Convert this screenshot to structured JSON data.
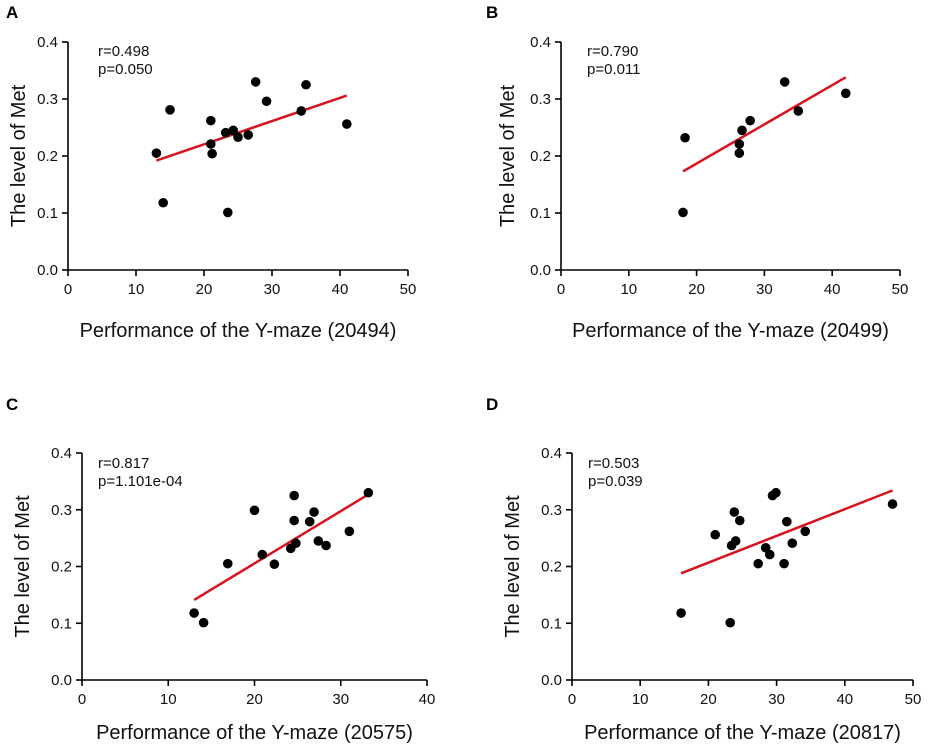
{
  "chart_data": [
    {
      "type": "scatter",
      "panel": "A",
      "stats": {
        "r": "r=0.498",
        "p": "p=0.050"
      },
      "xlabel": "Performance of the Y-maze (20494)",
      "ylabel": "The level of Met",
      "xlim": [
        0,
        50
      ],
      "ylim": [
        0,
        0.4
      ],
      "xticks": [
        "0",
        "10",
        "20",
        "30",
        "40",
        "50"
      ],
      "yticks": [
        "0.0",
        "0.1",
        "0.2",
        "0.3",
        "0.4"
      ],
      "fit": {
        "x": [
          13,
          41
        ],
        "y": [
          0.192,
          0.306
        ]
      },
      "points": [
        {
          "x": 13,
          "y": 0.205
        },
        {
          "x": 14,
          "y": 0.118
        },
        {
          "x": 15,
          "y": 0.281
        },
        {
          "x": 21,
          "y": 0.262
        },
        {
          "x": 21,
          "y": 0.221
        },
        {
          "x": 21.2,
          "y": 0.204
        },
        {
          "x": 23.2,
          "y": 0.241
        },
        {
          "x": 23.5,
          "y": 0.101
        },
        {
          "x": 24.3,
          "y": 0.245
        },
        {
          "x": 25,
          "y": 0.233
        },
        {
          "x": 26.5,
          "y": 0.237
        },
        {
          "x": 27.6,
          "y": 0.33
        },
        {
          "x": 29.2,
          "y": 0.296
        },
        {
          "x": 34.3,
          "y": 0.279
        },
        {
          "x": 35,
          "y": 0.325
        },
        {
          "x": 41,
          "y": 0.256
        }
      ]
    },
    {
      "type": "scatter",
      "panel": "B",
      "stats": {
        "r": "r=0.790",
        "p": "p=0.011"
      },
      "xlabel": "Performance of the Y-maze (20499)",
      "ylabel": "The level of Met",
      "xlim": [
        0,
        50
      ],
      "ylim": [
        0,
        0.4
      ],
      "xticks": [
        "0",
        "10",
        "20",
        "30",
        "40",
        "50"
      ],
      "yticks": [
        "0.0",
        "0.1",
        "0.2",
        "0.3",
        "0.4"
      ],
      "fit": {
        "x": [
          18,
          42
        ],
        "y": [
          0.173,
          0.338
        ]
      },
      "points": [
        {
          "x": 18,
          "y": 0.101
        },
        {
          "x": 18.3,
          "y": 0.232
        },
        {
          "x": 26.3,
          "y": 0.205
        },
        {
          "x": 26.3,
          "y": 0.221
        },
        {
          "x": 26.7,
          "y": 0.245
        },
        {
          "x": 27.9,
          "y": 0.262
        },
        {
          "x": 33,
          "y": 0.33
        },
        {
          "x": 35,
          "y": 0.279
        },
        {
          "x": 42,
          "y": 0.31
        }
      ]
    },
    {
      "type": "scatter",
      "panel": "C",
      "stats": {
        "r": "r=0.817",
        "p": "p=1.101e-04"
      },
      "xlabel": "Performance of the Y-maze (20575)",
      "ylabel": "The level of Met",
      "xlim": [
        0,
        40
      ],
      "ylim": [
        0,
        0.4
      ],
      "xticks": [
        "0",
        "10",
        "20",
        "30",
        "40"
      ],
      "yticks": [
        "0.0",
        "0.1",
        "0.2",
        "0.3",
        "0.4"
      ],
      "fit": {
        "x": [
          13,
          33.2
        ],
        "y": [
          0.141,
          0.327
        ]
      },
      "points": [
        {
          "x": 13,
          "y": 0.118
        },
        {
          "x": 14.1,
          "y": 0.101
        },
        {
          "x": 16.9,
          "y": 0.205
        },
        {
          "x": 20,
          "y": 0.299
        },
        {
          "x": 20.9,
          "y": 0.221
        },
        {
          "x": 22.3,
          "y": 0.204
        },
        {
          "x": 24.2,
          "y": 0.232
        },
        {
          "x": 24.6,
          "y": 0.325
        },
        {
          "x": 24.6,
          "y": 0.281
        },
        {
          "x": 24.8,
          "y": 0.241
        },
        {
          "x": 26.4,
          "y": 0.279
        },
        {
          "x": 26.9,
          "y": 0.296
        },
        {
          "x": 27.4,
          "y": 0.245
        },
        {
          "x": 28.3,
          "y": 0.237
        },
        {
          "x": 31,
          "y": 0.262
        },
        {
          "x": 33.2,
          "y": 0.33
        }
      ]
    },
    {
      "type": "scatter",
      "panel": "D",
      "stats": {
        "r": "r=0.503",
        "p": "p=0.039"
      },
      "xlabel": "Performance of the Y-maze (20817)",
      "ylabel": "The level of Met",
      "xlim": [
        0,
        50
      ],
      "ylim": [
        0,
        0.4
      ],
      "xticks": [
        "0",
        "10",
        "20",
        "30",
        "40",
        "50"
      ],
      "yticks": [
        "0.0",
        "0.1",
        "0.2",
        "0.3",
        "0.4"
      ],
      "fit": {
        "x": [
          16,
          47
        ],
        "y": [
          0.188,
          0.334
        ]
      },
      "points": [
        {
          "x": 16,
          "y": 0.118
        },
        {
          "x": 21,
          "y": 0.256
        },
        {
          "x": 23.2,
          "y": 0.101
        },
        {
          "x": 23.4,
          "y": 0.237
        },
        {
          "x": 23.8,
          "y": 0.296
        },
        {
          "x": 24,
          "y": 0.245
        },
        {
          "x": 24.6,
          "y": 0.281
        },
        {
          "x": 27.3,
          "y": 0.205
        },
        {
          "x": 28.4,
          "y": 0.233
        },
        {
          "x": 29,
          "y": 0.221
        },
        {
          "x": 29.4,
          "y": 0.325
        },
        {
          "x": 29.9,
          "y": 0.33
        },
        {
          "x": 31.1,
          "y": 0.205
        },
        {
          "x": 31.5,
          "y": 0.279
        },
        {
          "x": 32.3,
          "y": 0.241
        },
        {
          "x": 34.2,
          "y": 0.262
        },
        {
          "x": 47,
          "y": 0.31
        }
      ]
    }
  ]
}
